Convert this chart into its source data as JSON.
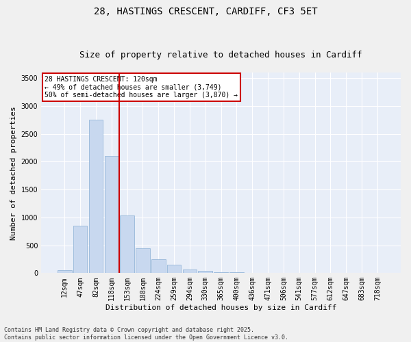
{
  "title_line1": "28, HASTINGS CRESCENT, CARDIFF, CF3 5ET",
  "title_line2": "Size of property relative to detached houses in Cardiff",
  "xlabel": "Distribution of detached houses by size in Cardiff",
  "ylabel": "Number of detached properties",
  "categories": [
    "12sqm",
    "47sqm",
    "82sqm",
    "118sqm",
    "153sqm",
    "188sqm",
    "224sqm",
    "259sqm",
    "294sqm",
    "330sqm",
    "365sqm",
    "400sqm",
    "436sqm",
    "471sqm",
    "506sqm",
    "541sqm",
    "577sqm",
    "612sqm",
    "647sqm",
    "683sqm",
    "718sqm"
  ],
  "values": [
    55,
    850,
    2760,
    2100,
    1030,
    450,
    245,
    155,
    65,
    40,
    18,
    12,
    5,
    2,
    1,
    0,
    0,
    0,
    0,
    0,
    0
  ],
  "bar_color": "#c8d8ef",
  "bar_edge_color": "#8aafd4",
  "vline_index": 3,
  "vline_color": "#cc0000",
  "annotation_text": "28 HASTINGS CRESCENT: 120sqm\n← 49% of detached houses are smaller (3,749)\n50% of semi-detached houses are larger (3,870) →",
  "annotation_box_color": "#cc0000",
  "ylim": [
    0,
    3600
  ],
  "yticks": [
    0,
    500,
    1000,
    1500,
    2000,
    2500,
    3000,
    3500
  ],
  "plot_bg_color": "#e8eef8",
  "fig_bg_color": "#f0f0f0",
  "grid_color": "#ffffff",
  "footer_text": "Contains HM Land Registry data © Crown copyright and database right 2025.\nContains public sector information licensed under the Open Government Licence v3.0.",
  "title_fontsize": 10,
  "subtitle_fontsize": 9,
  "axis_label_fontsize": 8,
  "tick_fontsize": 7,
  "annotation_fontsize": 7,
  "footer_fontsize": 6,
  "ylabel_full": "Number of detached properties"
}
